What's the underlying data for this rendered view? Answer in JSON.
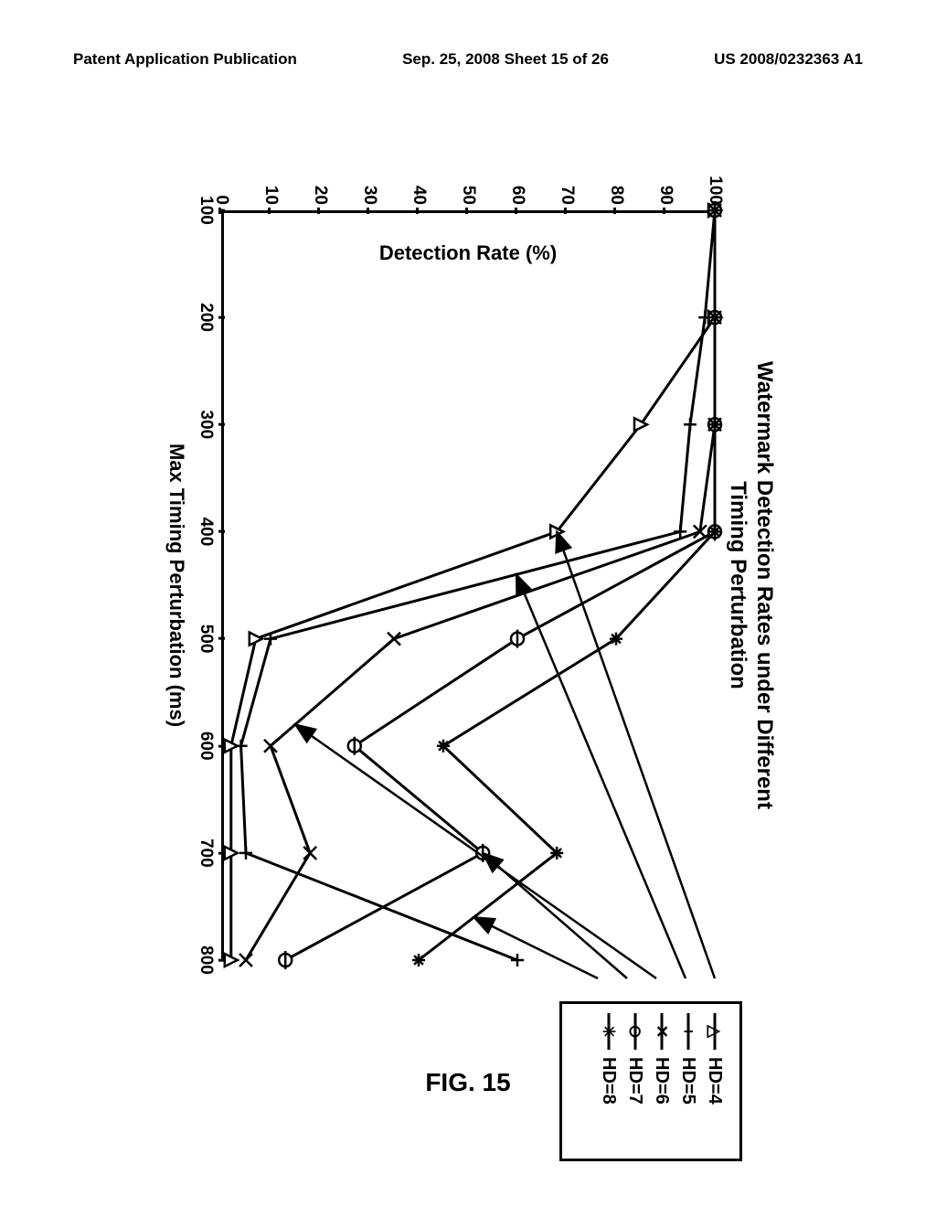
{
  "header": {
    "left": "Patent Application Publication",
    "center": "Sep. 25, 2008  Sheet 15 of 26",
    "right": "US 2008/0232363 A1"
  },
  "figure_caption": "FIG. 15",
  "chart": {
    "type": "line",
    "title_line1": "Watermark Detection Rates under Different",
    "title_line2": "Timing Perturbation",
    "xlabel": "Max Timing Perturbation (ms)",
    "ylabel": "Detection Rate (%)",
    "xlim": [
      100,
      800
    ],
    "ylim": [
      0,
      100
    ],
    "xticks": [
      100,
      200,
      300,
      400,
      500,
      600,
      700,
      800
    ],
    "yticks": [
      0,
      10,
      20,
      30,
      40,
      50,
      60,
      70,
      80,
      90,
      100
    ],
    "line_color": "#000000",
    "line_width": 3,
    "marker_size": 14,
    "background_color": "#ffffff",
    "series": [
      {
        "name": "HD=4",
        "marker": "triangle",
        "x": [
          100,
          200,
          300,
          400,
          500,
          600,
          700,
          800
        ],
        "y": [
          100,
          100,
          85,
          68,
          7,
          2,
          2,
          2
        ]
      },
      {
        "name": "HD=5",
        "marker": "plus",
        "x": [
          100,
          200,
          300,
          400,
          500,
          600,
          700,
          800
        ],
        "y": [
          100,
          98,
          95,
          93,
          10,
          4,
          5,
          60
        ]
      },
      {
        "name": "HD=6",
        "marker": "x",
        "x": [
          100,
          200,
          300,
          400,
          500,
          600,
          700,
          800
        ],
        "y": [
          100,
          100,
          100,
          97,
          35,
          10,
          18,
          5
        ]
      },
      {
        "name": "HD=7",
        "marker": "circle",
        "x": [
          100,
          200,
          300,
          400,
          500,
          600,
          700,
          800
        ],
        "y": [
          100,
          100,
          100,
          100,
          60,
          27,
          53,
          13
        ]
      },
      {
        "name": "HD=8",
        "marker": "asterisk",
        "x": [
          100,
          200,
          300,
          400,
          500,
          600,
          700,
          800
        ],
        "y": [
          100,
          100,
          100,
          100,
          80,
          45,
          68,
          40
        ]
      }
    ],
    "legend": [
      "HD=4",
      "HD=5",
      "HD=6",
      "HD=7",
      "HD=8"
    ],
    "legend_markers": [
      "triangle",
      "plus",
      "x",
      "circle",
      "asterisk"
    ],
    "arrows": [
      {
        "from_legend": 0,
        "to_series": 0,
        "to_x": 400
      },
      {
        "from_legend": 1,
        "to_series": 1,
        "to_x": 440
      },
      {
        "from_legend": 2,
        "to_series": 2,
        "to_x": 580
      },
      {
        "from_legend": 3,
        "to_series": 3,
        "to_x": 700
      },
      {
        "from_legend": 4,
        "to_series": 4,
        "to_x": 760
      }
    ]
  }
}
